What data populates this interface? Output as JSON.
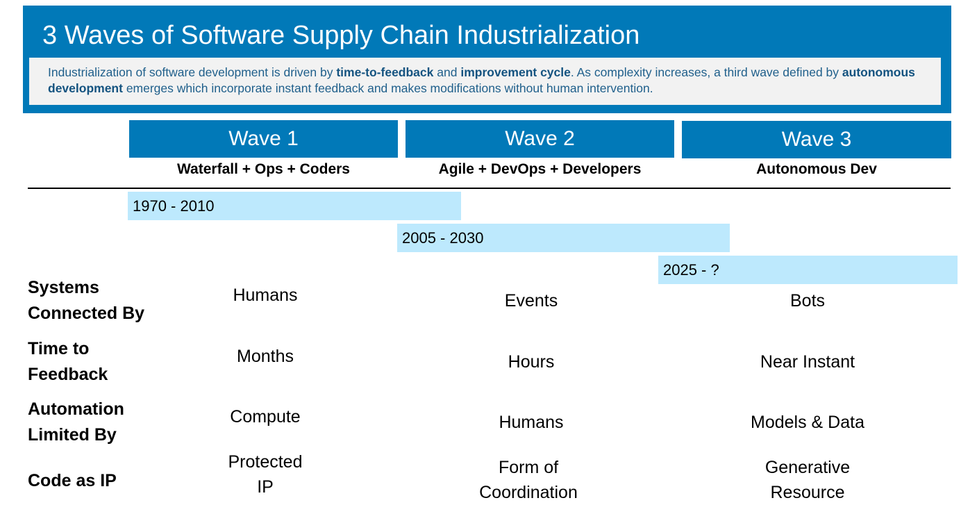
{
  "header": {
    "title": "3 Waves of Software Supply Chain Industrialization",
    "subtitle": {
      "t1": "Industrialization of software development is driven by ",
      "b1": "time-to-feedback",
      "t2": " and ",
      "b2": "improvement cycle",
      "t3": ". As complexity increases, a third wave defined by ",
      "b3": "autonomous development",
      "t4": " emerges which incorporate instant feedback and makes modifications without human intervention."
    }
  },
  "waves": [
    {
      "label": "Wave 1",
      "subtitle": "Waterfall + Ops + Coders"
    },
    {
      "label": "Wave 2",
      "subtitle": "Agile + DevOps + Developers"
    },
    {
      "label": "Wave 3",
      "subtitle": "Autonomous Dev"
    }
  ],
  "timeline": [
    "1970 - 2010",
    "2005 - 2030",
    "2025 - ?"
  ],
  "rows": [
    {
      "label_line1": "Systems",
      "label_line2": "Connected By",
      "cells": [
        "Humans",
        "Events",
        "Bots"
      ]
    },
    {
      "label_line1": "Time to",
      "label_line2": "Feedback",
      "cells": [
        "Months",
        "Hours",
        "Near Instant"
      ]
    },
    {
      "label_line1": "Automation",
      "label_line2": "Limited By",
      "cells": [
        "Compute",
        "Humans",
        "Models & Data"
      ]
    },
    {
      "label_line1": "Code as IP",
      "cells_line1": [
        "Protected",
        "Form of",
        "Generative"
      ],
      "cells_line2": [
        "IP",
        "Coordination",
        "Resource"
      ]
    }
  ],
  "colors": {
    "primary": "#0179b8",
    "timebar": "#bde9fd",
    "panel": "#f2f2f2"
  }
}
